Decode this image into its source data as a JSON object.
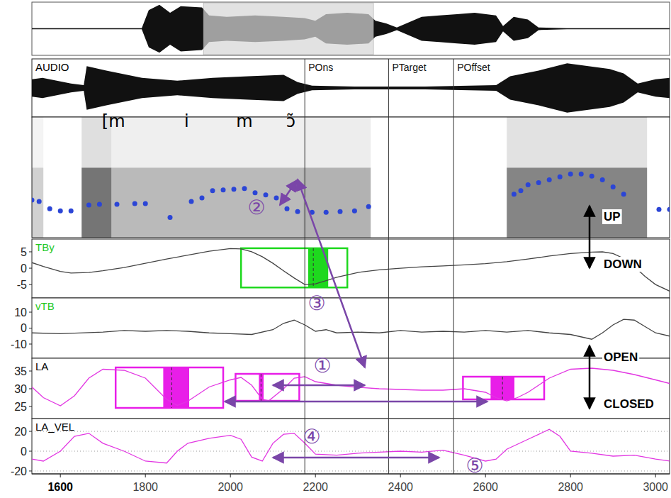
{
  "chart_data": {
    "type": "multi-panel",
    "xlim": [
      1533,
      3033
    ],
    "xticks": [
      1600,
      1800,
      2000,
      2200,
      2400,
      2600,
      2800,
      3000
    ],
    "landmarks": [
      {
        "label": "POns",
        "x": 2175
      },
      {
        "label": "PTarget",
        "x": 2372
      },
      {
        "label": "POffset",
        "x": 2525
      }
    ],
    "segments": [
      {
        "label": "[m",
        "x": 1725
      },
      {
        "label": "i",
        "x": 1897
      },
      {
        "label": "m",
        "x": 2033
      },
      {
        "label": "ɔ̃",
        "x": 2142
      }
    ],
    "annotations": [
      "①",
      "②",
      "③",
      "④",
      "⑤"
    ],
    "direction_labels": [
      "UP",
      "DOWN",
      "OPEN",
      "CLOSED"
    ],
    "overview": {
      "type": "area",
      "xlim": [
        20,
        5645
      ],
      "ylim": [
        -1,
        1
      ],
      "x": [
        20,
        989,
        1051,
        1145,
        1239,
        1333,
        1520,
        1583,
        1739,
        1989,
        2239,
        2426,
        2520,
        2614,
        2801,
        2989,
        3051,
        3145,
        3239,
        3458,
        3614,
        3770,
        3926,
        4114,
        4176,
        4270,
        4395,
        4489,
        4739,
        5645
      ],
      "values": [
        0.02,
        0.02,
        0.7,
        0.9,
        0.6,
        0.85,
        0.8,
        0.5,
        0.45,
        0.5,
        0.45,
        0.4,
        0.3,
        0.55,
        0.6,
        0.55,
        0.3,
        0.2,
        0.05,
        0.45,
        0.5,
        0.55,
        0.6,
        0.5,
        0.1,
        0.45,
        0.35,
        0.05,
        0.02,
        0.02
      ],
      "color": "#111111",
      "tick_labels": false
    },
    "panels": [
      {
        "type": "area",
        "title": {
          "text": "AUDIO",
          "color": "#000000"
        },
        "ylim": [
          -1,
          1
        ],
        "tick_labels": false,
        "x": [
          1533,
          1558,
          1625,
          1655,
          1662,
          1708,
          1792,
          1875,
          1958,
          2042,
          2125,
          2158,
          2192,
          2292,
          2458,
          2625,
          2658,
          2725,
          2792,
          2842,
          2892,
          2925,
          2958,
          3000,
          3033
        ],
        "series": [
          {
            "color": "#111111",
            "values": [
              0.3,
              0.35,
              0.15,
              0.1,
              0.75,
              0.6,
              0.35,
              0.25,
              0.35,
              0.4,
              0.45,
              0.2,
              0.08,
              0.05,
              0.05,
              0.1,
              0.4,
              0.6,
              0.85,
              0.75,
              0.65,
              0.5,
              0.15,
              0.3,
              0.35
            ]
          }
        ]
      },
      {
        "type": "scatter",
        "ylim": [
          0,
          500
        ],
        "tick_labels": false,
        "bands": [
          {
            "x": [
              1533,
              1560
            ],
            "value": 0.3
          },
          {
            "x": [
              1650,
              1720
            ],
            "value": 0.9
          },
          {
            "x": [
              1720,
              2170
            ],
            "value": 0.45
          },
          {
            "x": [
              2170,
              2330
            ],
            "value": 0.5
          },
          {
            "x": [
              2650,
              2980
            ],
            "value": 0.8
          }
        ],
        "x": [
          1533,
          1550,
          1575,
          1600,
          1625,
          1667,
          1692,
          1733,
          1775,
          1800,
          1858,
          1908,
          1933,
          1958,
          1983,
          2008,
          2033,
          2058,
          2083,
          2108,
          2133,
          2158,
          2192,
          2225,
          2258,
          2292,
          2325,
          2400,
          2667,
          2683,
          2700,
          2725,
          2750,
          2775,
          2800,
          2825,
          2850,
          2875,
          2900,
          2925,
          2975,
          3008,
          3033
        ],
        "series": [
          {
            "color": "#2b45d6",
            "marker": "circle",
            "values": [
              156,
              150,
              120,
              111,
              111,
              135,
              138,
              138,
              141,
              141,
              84,
              150,
              165,
              195,
              198,
              201,
              204,
              186,
              177,
              165,
              120,
              108,
              105,
              105,
              108,
              111,
              129,
              null,
              180,
              195,
              219,
              228,
              240,
              252,
              264,
              264,
              255,
              240,
              210,
              180,
              null,
              117,
              117
            ]
          }
        ]
      },
      {
        "type": "line",
        "title": {
          "text": "TBy",
          "color": "#1ec81e"
        },
        "ylim": [
          -9.1,
          8.9
        ],
        "yticks": [
          5,
          0,
          -5
        ],
        "x": [
          1533,
          1560,
          1600,
          1625,
          1667,
          1700,
          1750,
          1800,
          1850,
          1900,
          1950,
          2000,
          2025,
          2050,
          2075,
          2100,
          2125,
          2150,
          2175,
          2200,
          2225,
          2250,
          2300,
          2350,
          2400,
          2450,
          2500,
          2550,
          2600,
          2650,
          2700,
          2750,
          2800,
          2850,
          2875,
          2900,
          2925,
          2950,
          2975,
          3000,
          3033
        ],
        "series": [
          {
            "color": "#444444",
            "values": [
              1.7,
              0.5,
              -1.0,
              -1.5,
              -1.3,
              -0.8,
              0.2,
              1.5,
              2.8,
              4.0,
              5.2,
              6.0,
              5.9,
              5.0,
              3.5,
              1.5,
              -0.8,
              -3.0,
              -5.0,
              -4.8,
              -3.8,
              -2.8,
              -1.3,
              -0.5,
              0,
              0.4,
              0.7,
              1.0,
              1.4,
              2.0,
              2.8,
              3.7,
              4.5,
              4.9,
              5.0,
              4.5,
              3.0,
              0.5,
              -2.5,
              -5.0,
              -7.0
            ]
          }
        ],
        "boxes": [
          {
            "color": "#1ed81e",
            "x": [
              2025,
              2275
            ],
            "y": [
              -5.9,
              6.1
            ],
            "fill": [
              2183,
              2230
            ],
            "mark": 2195
          }
        ]
      },
      {
        "type": "line",
        "title": {
          "text": "vTB",
          "color": "#1ec81e"
        },
        "ylim": [
          -18.9,
          18.9
        ],
        "yticks": [
          10,
          0,
          -10
        ],
        "x": [
          1533,
          1600,
          1700,
          1750,
          1800,
          1850,
          1900,
          1950,
          2000,
          2050,
          2100,
          2125,
          2150,
          2175,
          2200,
          2225,
          2250,
          2300,
          2350,
          2400,
          2450,
          2500,
          2550,
          2600,
          2650,
          2700,
          2750,
          2800,
          2850,
          2875,
          2900,
          2925,
          2950,
          2975,
          3000,
          3033
        ],
        "series": [
          {
            "color": "#444444",
            "values": [
              -3,
              -3.5,
              -2.5,
              -1.5,
              -2,
              -1.5,
              -2,
              -3,
              -3.5,
              -4,
              -1,
              3,
              5,
              2,
              -2,
              -1,
              -3,
              -2.5,
              -3,
              -1.5,
              -2.5,
              -2,
              -2.5,
              -1.5,
              -2.5,
              -1.5,
              -3,
              -4,
              -7,
              -3,
              2,
              5.5,
              5,
              1,
              -3,
              -5
            ]
          }
        ]
      },
      {
        "type": "line",
        "title": {
          "text": "LA",
          "color": "#000000"
        },
        "ylim": [
          21.6,
          38.6
        ],
        "yticks": [
          35,
          30,
          25
        ],
        "x": [
          1533,
          1560,
          1600,
          1633,
          1667,
          1700,
          1750,
          1800,
          1850,
          1875,
          1900,
          1950,
          2000,
          2025,
          2050,
          2075,
          2090,
          2125,
          2150,
          2175,
          2200,
          2250,
          2300,
          2350,
          2400,
          2450,
          2500,
          2550,
          2600,
          2625,
          2650,
          2675,
          2700,
          2750,
          2800,
          2850,
          2900,
          2950,
          3000,
          3033
        ],
        "series": [
          {
            "color": "#e236e2",
            "values": [
              30.5,
              27.5,
              25.2,
              28,
              33,
              35.5,
              35.2,
              33,
              27,
              25.3,
              26.5,
              30.5,
              32.5,
              33.2,
              31,
              27,
              26.6,
              30,
              33,
              33.4,
              32,
              31,
              30.4,
              30,
              29.8,
              29.6,
              29.6,
              30,
              29,
              27.5,
              26.6,
              27.5,
              29,
              33,
              35.5,
              35.8,
              35.2,
              34,
              32.5,
              31.5
            ]
          }
        ],
        "boxes": [
          {
            "color": "#e81ee8",
            "x": [
              1730,
              1983
            ],
            "y": [
              24.6,
              36
            ],
            "fill": [
              1842,
              1903
            ],
            "mark": 1862
          },
          {
            "color": "#e81ee8",
            "x": [
              2012,
              2162
            ],
            "y": [
              26.6,
              34.2
            ],
            "fill": [
              2067,
              2078
            ],
            "mark": 2072
          },
          {
            "color": "#e81ee8",
            "x": [
              2547,
              2738
            ],
            "y": [
              27,
              33.4
            ],
            "fill": [
              2612,
              2668
            ],
            "mark": 2640
          }
        ]
      },
      {
        "type": "line",
        "title": {
          "text": "LA_VEL",
          "color": "#000000"
        },
        "ylim": [
          -22.9,
          32.9
        ],
        "yticks": [
          20,
          0,
          -20
        ],
        "grid": true,
        "x": [
          1533,
          1560,
          1600,
          1633,
          1667,
          1700,
          1750,
          1800,
          1850,
          1875,
          1900,
          1950,
          2000,
          2025,
          2050,
          2075,
          2100,
          2125,
          2150,
          2175,
          2200,
          2250,
          2300,
          2350,
          2400,
          2450,
          2500,
          2550,
          2600,
          2625,
          2650,
          2700,
          2750,
          2775,
          2800,
          2850,
          2900,
          2950,
          3000,
          3033
        ],
        "series": [
          {
            "color": "#e236e2",
            "values": [
              -8,
              -10,
              0,
              15,
              18,
              8,
              0,
              -10,
              -12,
              0,
              8,
              13,
              16,
              12,
              -6,
              -10,
              8,
              17,
              18,
              8,
              -3,
              -4,
              -2,
              -1,
              0,
              -1,
              1,
              -4,
              -10,
              -8,
              2,
              12,
              22,
              15,
              0,
              -2,
              -5,
              -4,
              -8,
              -10
            ]
          }
        ]
      }
    ]
  }
}
